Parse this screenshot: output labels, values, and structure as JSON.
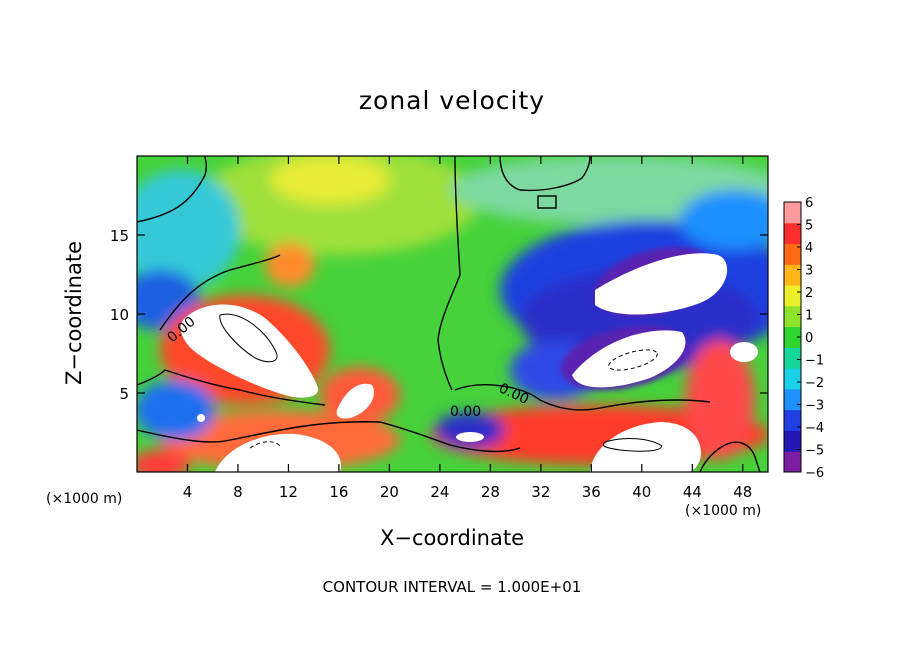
{
  "chart_data": {
    "type": "heatmap",
    "title": "zonal velocity",
    "xlabel": "X−coordinate",
    "ylabel": "Z−coordinate",
    "x_unit_label": "(×1000 m)",
    "x_unit_label_right": "(×1000 m)",
    "xlim": [
      0,
      50
    ],
    "ylim": [
      0,
      20
    ],
    "x_ticks": [
      "4",
      "8",
      "12",
      "16",
      "20",
      "24",
      "28",
      "32",
      "36",
      "40",
      "44",
      "48"
    ],
    "y_ticks": [
      "5",
      "10",
      "15"
    ],
    "colorbar": {
      "ticks": [
        "6",
        "5",
        "4",
        "3",
        "2",
        "1",
        "0",
        "−1",
        "−2",
        "−3",
        "−4",
        "−5",
        "−6"
      ],
      "range": [
        -6,
        6
      ],
      "colors": [
        "#7a1fa2",
        "#2018b0",
        "#1f3fe0",
        "#1e90ff",
        "#19d2e8",
        "#13d79a",
        "#2fd52f",
        "#8fe22a",
        "#e9ef2a",
        "#ffb515",
        "#ff6a16",
        "#ff2f2f",
        "#ff9a9a"
      ]
    },
    "contour_labels": [
      "0.00",
      "0.00",
      "0.00"
    ],
    "footer": "CONTOUR INTERVAL = 1.000E+01",
    "features": [
      {
        "region": "upper left jet",
        "x": [
          4,
          14
        ],
        "z": [
          5,
          11
        ],
        "value": "> 6"
      },
      {
        "region": "upper right jet",
        "x": [
          36,
          46
        ],
        "z": [
          6,
          13
        ],
        "value": "< −6"
      },
      {
        "region": "lower left surface",
        "x": [
          4,
          18
        ],
        "z": [
          0,
          3
        ],
        "value": "> 6"
      },
      {
        "region": "lower right surface",
        "x": [
          34,
          44
        ],
        "z": [
          0,
          3
        ],
        "value": "> 6"
      }
    ]
  }
}
